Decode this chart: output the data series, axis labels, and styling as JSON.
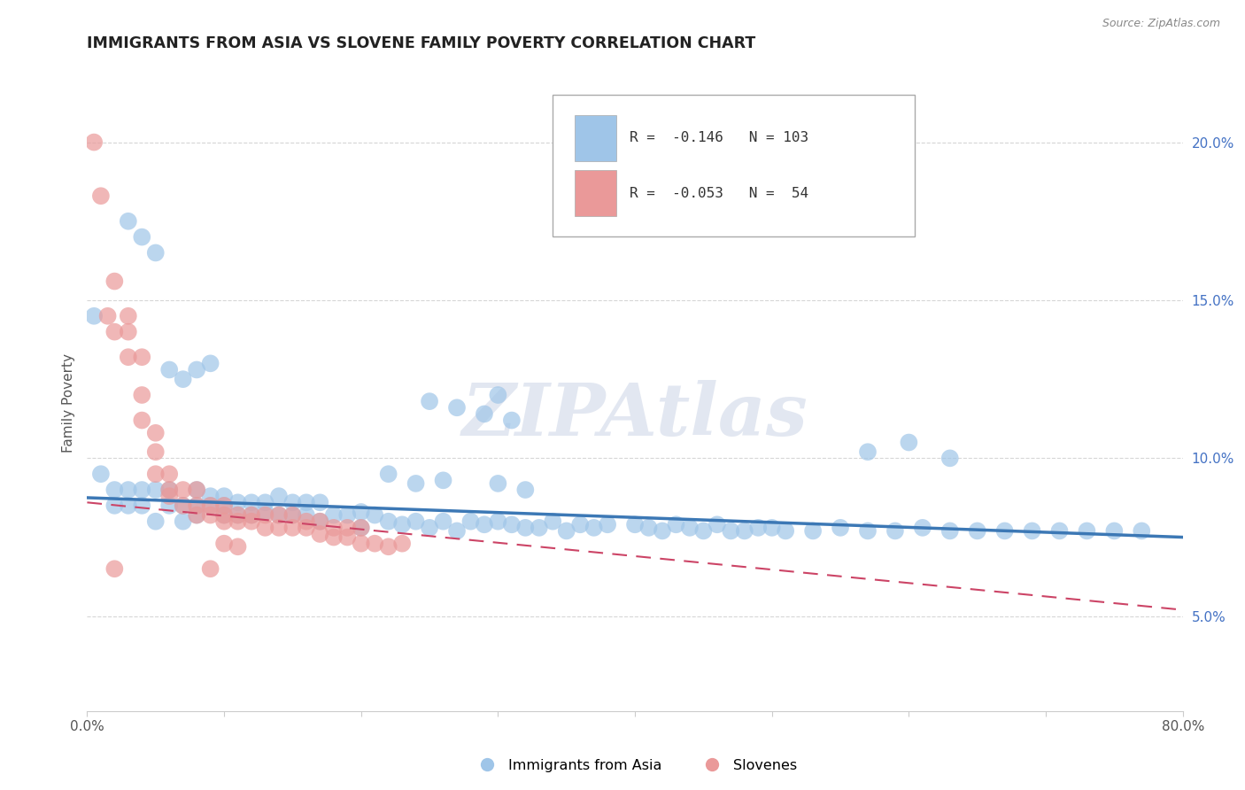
{
  "title": "IMMIGRANTS FROM ASIA VS SLOVENE FAMILY POVERTY CORRELATION CHART",
  "source_text": "Source: ZipAtlas.com",
  "ylabel": "Family Poverty",
  "xlim": [
    0.0,
    0.8
  ],
  "ylim": [
    0.02,
    0.215
  ],
  "xticks": [
    0.0,
    0.1,
    0.2,
    0.3,
    0.4,
    0.5,
    0.6,
    0.7,
    0.8
  ],
  "xticklabels": [
    "0.0%",
    "",
    "",
    "",
    "",
    "",
    "",
    "",
    "80.0%"
  ],
  "yticks": [
    0.05,
    0.1,
    0.15,
    0.2
  ],
  "yticklabels": [
    "5.0%",
    "10.0%",
    "15.0%",
    "20.0%"
  ],
  "blue_color": "#9fc5e8",
  "pink_color": "#ea9999",
  "blue_line_color": "#3c78b5",
  "pink_line_color": "#cc4466",
  "blue_R": -0.146,
  "blue_N": 103,
  "pink_R": -0.053,
  "pink_N": 54,
  "watermark": "ZIPAtlas",
  "legend_label_blue": "Immigrants from Asia",
  "legend_label_pink": "Slovenes",
  "blue_scatter_x": [
    0.005,
    0.01,
    0.02,
    0.02,
    0.03,
    0.03,
    0.04,
    0.04,
    0.05,
    0.05,
    0.06,
    0.06,
    0.07,
    0.07,
    0.08,
    0.08,
    0.08,
    0.09,
    0.09,
    0.1,
    0.1,
    0.1,
    0.11,
    0.11,
    0.12,
    0.12,
    0.13,
    0.13,
    0.14,
    0.14,
    0.15,
    0.15,
    0.16,
    0.16,
    0.17,
    0.17,
    0.18,
    0.19,
    0.2,
    0.2,
    0.21,
    0.22,
    0.23,
    0.24,
    0.25,
    0.26,
    0.27,
    0.28,
    0.29,
    0.3,
    0.31,
    0.32,
    0.33,
    0.34,
    0.35,
    0.36,
    0.37,
    0.38,
    0.4,
    0.41,
    0.42,
    0.43,
    0.44,
    0.45,
    0.46,
    0.47,
    0.48,
    0.49,
    0.5,
    0.51,
    0.53,
    0.55,
    0.57,
    0.59,
    0.61,
    0.63,
    0.65,
    0.67,
    0.69,
    0.71,
    0.73,
    0.75,
    0.77,
    0.3,
    0.32,
    0.22,
    0.24,
    0.26,
    0.57,
    0.6,
    0.63,
    0.08,
    0.09,
    0.03,
    0.04,
    0.05,
    0.06,
    0.07,
    0.3,
    0.25,
    0.27,
    0.29,
    0.31
  ],
  "blue_scatter_y": [
    0.145,
    0.095,
    0.085,
    0.09,
    0.085,
    0.09,
    0.09,
    0.085,
    0.09,
    0.08,
    0.09,
    0.085,
    0.085,
    0.08,
    0.085,
    0.082,
    0.09,
    0.085,
    0.088,
    0.085,
    0.082,
    0.088,
    0.082,
    0.086,
    0.082,
    0.086,
    0.083,
    0.086,
    0.082,
    0.088,
    0.082,
    0.086,
    0.082,
    0.086,
    0.08,
    0.086,
    0.082,
    0.082,
    0.083,
    0.078,
    0.082,
    0.08,
    0.079,
    0.08,
    0.078,
    0.08,
    0.077,
    0.08,
    0.079,
    0.08,
    0.079,
    0.078,
    0.078,
    0.08,
    0.077,
    0.079,
    0.078,
    0.079,
    0.079,
    0.078,
    0.077,
    0.079,
    0.078,
    0.077,
    0.079,
    0.077,
    0.077,
    0.078,
    0.078,
    0.077,
    0.077,
    0.078,
    0.077,
    0.077,
    0.078,
    0.077,
    0.077,
    0.077,
    0.077,
    0.077,
    0.077,
    0.077,
    0.077,
    0.092,
    0.09,
    0.095,
    0.092,
    0.093,
    0.102,
    0.105,
    0.1,
    0.128,
    0.13,
    0.175,
    0.17,
    0.165,
    0.128,
    0.125,
    0.12,
    0.118,
    0.116,
    0.114,
    0.112
  ],
  "pink_scatter_x": [
    0.005,
    0.01,
    0.015,
    0.02,
    0.02,
    0.03,
    0.03,
    0.03,
    0.04,
    0.04,
    0.04,
    0.05,
    0.05,
    0.05,
    0.06,
    0.06,
    0.06,
    0.07,
    0.07,
    0.08,
    0.08,
    0.08,
    0.09,
    0.09,
    0.1,
    0.1,
    0.1,
    0.11,
    0.11,
    0.12,
    0.12,
    0.13,
    0.13,
    0.14,
    0.14,
    0.15,
    0.15,
    0.16,
    0.16,
    0.17,
    0.17,
    0.18,
    0.18,
    0.19,
    0.19,
    0.2,
    0.2,
    0.21,
    0.22,
    0.23,
    0.1,
    0.11,
    0.02,
    0.09
  ],
  "pink_scatter_y": [
    0.2,
    0.183,
    0.145,
    0.156,
    0.14,
    0.145,
    0.14,
    0.132,
    0.132,
    0.12,
    0.112,
    0.108,
    0.102,
    0.095,
    0.095,
    0.09,
    0.088,
    0.09,
    0.085,
    0.09,
    0.085,
    0.082,
    0.085,
    0.082,
    0.085,
    0.082,
    0.08,
    0.082,
    0.08,
    0.082,
    0.08,
    0.082,
    0.078,
    0.082,
    0.078,
    0.082,
    0.078,
    0.08,
    0.078,
    0.08,
    0.076,
    0.078,
    0.075,
    0.078,
    0.075,
    0.078,
    0.073,
    0.073,
    0.072,
    0.073,
    0.073,
    0.072,
    0.065,
    0.065
  ],
  "blue_trend_x": [
    0.0,
    0.8
  ],
  "blue_trend_y": [
    0.0875,
    0.075
  ],
  "pink_trend_x": [
    0.0,
    0.8
  ],
  "pink_trend_y": [
    0.086,
    0.052
  ]
}
